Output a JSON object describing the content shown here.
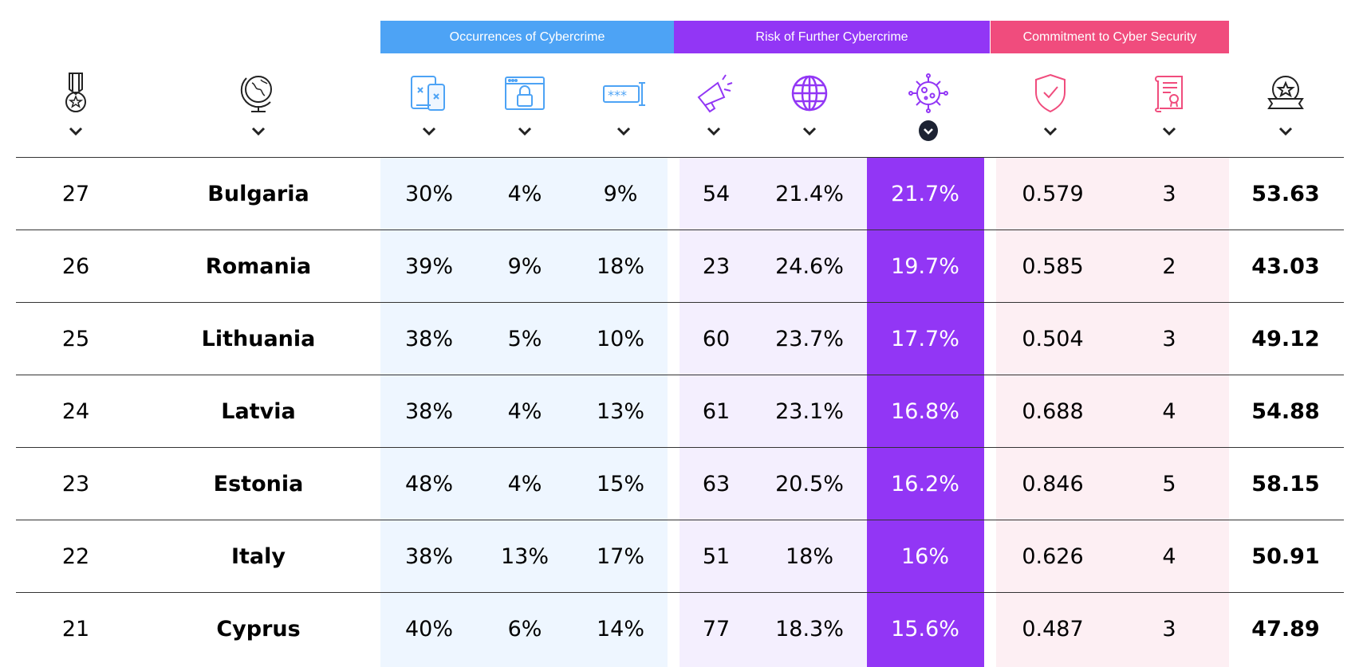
{
  "groups": {
    "occurrences": "Occurrences of Cybercrime",
    "risk": "Risk of Further Cybercrime",
    "commitment": "Commitment to Cyber Security"
  },
  "colors": {
    "occurrences": "#4da3f5",
    "risk": "#9236f5",
    "commitment": "#f04c7d",
    "occ_bg": "#eef6ff",
    "risk_bg": "#f4effe",
    "com_bg": "#fdeff3",
    "selected_col": "#9236f5"
  },
  "columns": [
    {
      "key": "rank",
      "icon": "medal-icon"
    },
    {
      "key": "country",
      "icon": "globe-stand-icon"
    },
    {
      "key": "occ1",
      "icon": "devices-malware-icon"
    },
    {
      "key": "occ2",
      "icon": "browser-lock-icon"
    },
    {
      "key": "occ3",
      "icon": "password-field-icon"
    },
    {
      "key": "risk1",
      "icon": "megaphone-icon"
    },
    {
      "key": "risk2",
      "icon": "globe-icon"
    },
    {
      "key": "risk3",
      "icon": "virus-icon",
      "sorted": true
    },
    {
      "key": "com1",
      "icon": "shield-check-icon"
    },
    {
      "key": "com2",
      "icon": "certificate-scroll-icon"
    },
    {
      "key": "score",
      "icon": "award-badge-icon"
    }
  ],
  "rows": [
    {
      "rank": "27",
      "country": "Bulgaria",
      "occ1": "30%",
      "occ2": "4%",
      "occ3": "9%",
      "risk1": "54",
      "risk2": "21.4%",
      "risk3": "21.7%",
      "com1": "0.579",
      "com2": "3",
      "score": "53.63"
    },
    {
      "rank": "26",
      "country": "Romania",
      "occ1": "39%",
      "occ2": "9%",
      "occ3": "18%",
      "risk1": "23",
      "risk2": "24.6%",
      "risk3": "19.7%",
      "com1": "0.585",
      "com2": "2",
      "score": "43.03"
    },
    {
      "rank": "25",
      "country": "Lithuania",
      "occ1": "38%",
      "occ2": "5%",
      "occ3": "10%",
      "risk1": "60",
      "risk2": "23.7%",
      "risk3": "17.7%",
      "com1": "0.504",
      "com2": "3",
      "score": "49.12"
    },
    {
      "rank": "24",
      "country": "Latvia",
      "occ1": "38%",
      "occ2": "4%",
      "occ3": "13%",
      "risk1": "61",
      "risk2": "23.1%",
      "risk3": "16.8%",
      "com1": "0.688",
      "com2": "4",
      "score": "54.88"
    },
    {
      "rank": "23",
      "country": "Estonia",
      "occ1": "48%",
      "occ2": "4%",
      "occ3": "15%",
      "risk1": "63",
      "risk2": "20.5%",
      "risk3": "16.2%",
      "com1": "0.846",
      "com2": "5",
      "score": "58.15"
    },
    {
      "rank": "22",
      "country": "Italy",
      "occ1": "38%",
      "occ2": "13%",
      "occ3": "17%",
      "risk1": "51",
      "risk2": "18%",
      "risk3": "16%",
      "com1": "0.626",
      "com2": "4",
      "score": "50.91"
    },
    {
      "rank": "21",
      "country": "Cyprus",
      "occ1": "40%",
      "occ2": "6%",
      "occ3": "14%",
      "risk1": "77",
      "risk2": "18.3%",
      "risk3": "15.6%",
      "com1": "0.487",
      "com2": "3",
      "score": "47.89"
    }
  ]
}
